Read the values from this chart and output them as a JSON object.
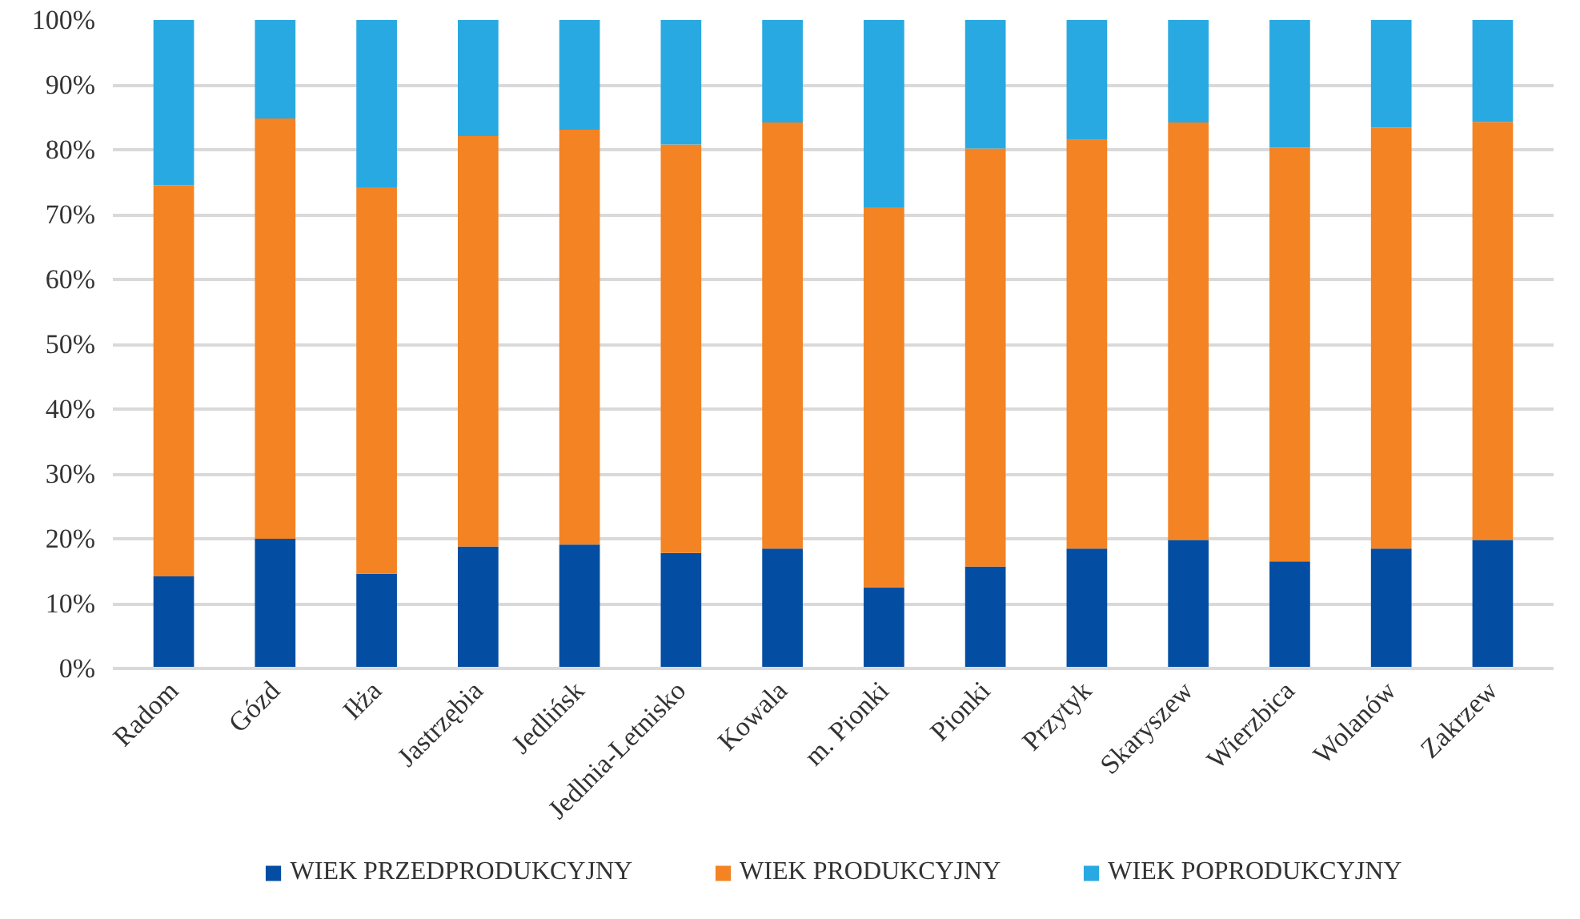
{
  "chart_data": {
    "type": "bar",
    "stacked": true,
    "categories": [
      "Radom",
      "Gózd",
      "Iłża",
      "Jastrzębia",
      "Jedlińsk",
      "Jedlnia-Letnisko",
      "Kowala",
      "m. Pionki",
      "Pionki",
      "Przytyk",
      "Skaryszew",
      "Wierzbica",
      "Wolanów",
      "Zakrzew"
    ],
    "series": [
      {
        "name": "WIEK PRZEDPRODUKCYJNY",
        "color": "#034ea2",
        "values": [
          14.2,
          20.0,
          14.6,
          18.8,
          19.1,
          17.8,
          18.5,
          12.5,
          15.7,
          18.5,
          19.8,
          16.5,
          18.5,
          19.8
        ]
      },
      {
        "name": "WIEK PRODUKCYJNY",
        "color": "#f38323",
        "values": [
          60.3,
          64.8,
          59.6,
          63.3,
          64.0,
          63.0,
          65.7,
          58.6,
          64.5,
          63.0,
          64.4,
          63.8,
          64.9,
          64.5
        ]
      },
      {
        "name": "WIEK POPRODUKCYJNY",
        "color": "#29a9e1",
        "values": [
          25.5,
          15.2,
          25.8,
          17.9,
          16.9,
          19.2,
          15.8,
          28.9,
          19.8,
          18.5,
          15.8,
          19.7,
          16.6,
          15.7
        ]
      }
    ],
    "ylim": [
      0,
      100
    ],
    "yticks": [
      {
        "value": 0,
        "label": "0%"
      },
      {
        "value": 10,
        "label": "10%"
      },
      {
        "value": 20,
        "label": "20%"
      },
      {
        "value": 30,
        "label": "30%"
      },
      {
        "value": 40,
        "label": "40%"
      },
      {
        "value": 50,
        "label": "50%"
      },
      {
        "value": 60,
        "label": "60%"
      },
      {
        "value": 70,
        "label": "70%"
      },
      {
        "value": 80,
        "label": "80%"
      },
      {
        "value": 90,
        "label": "90%"
      },
      {
        "value": 100,
        "label": "100%"
      }
    ],
    "grid": "y",
    "legend": "bottom"
  }
}
